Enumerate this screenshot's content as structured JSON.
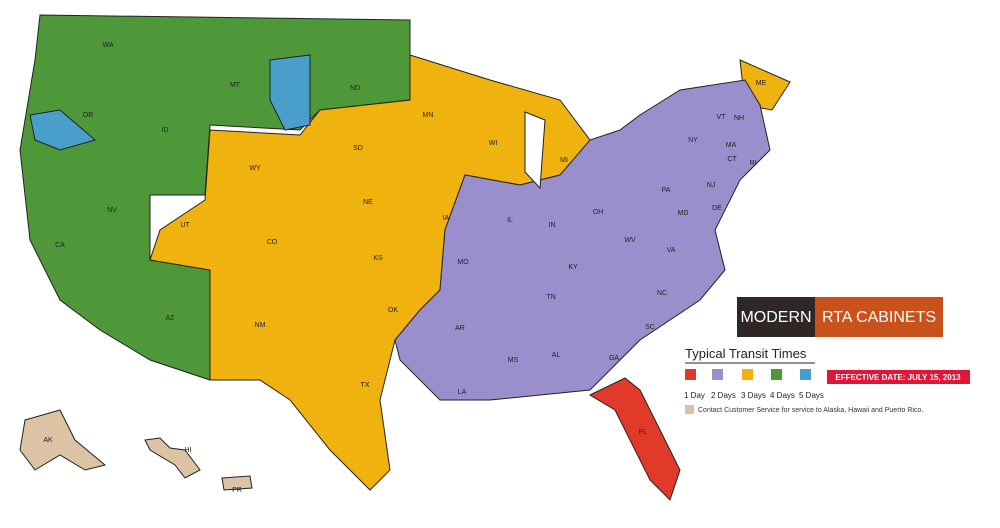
{
  "brand": {
    "left": "MODERN",
    "right": "RTA CABINETS"
  },
  "legend": {
    "title": "Typical Transit Times",
    "items": [
      {
        "label": "1 Day",
        "color": "#e23a2a"
      },
      {
        "label": "2 Days",
        "color": "#9a8fcc"
      },
      {
        "label": "3 Days",
        "color": "#f0b20e"
      },
      {
        "label": "4 Days",
        "color": "#4f983a"
      },
      {
        "label": "5 Days",
        "color": "#4a9fca"
      }
    ],
    "effective_date": "EFFECTIVE DATE: JULY 15, 2013",
    "note": "Contact Customer Service for service to Alaska, Hawaii and Puerto Rico.",
    "note_color": "#dcc3a3"
  },
  "states": [
    "WA",
    "OR",
    "CA",
    "NV",
    "ID",
    "MT",
    "WY",
    "UT",
    "AZ",
    "CO",
    "NM",
    "ND",
    "SD",
    "NE",
    "KS",
    "OK",
    "TX",
    "MN",
    "IA",
    "MO",
    "AR",
    "LA",
    "WI",
    "IL",
    "MI",
    "IN",
    "OH",
    "KY",
    "TN",
    "MS",
    "AL",
    "GA",
    "FL",
    "SC",
    "NC",
    "VA",
    "WV",
    "PA",
    "NY",
    "VT",
    "NH",
    "ME",
    "MA",
    "CT",
    "RI",
    "NJ",
    "MD",
    "DE",
    "AK",
    "HI",
    "PR"
  ]
}
